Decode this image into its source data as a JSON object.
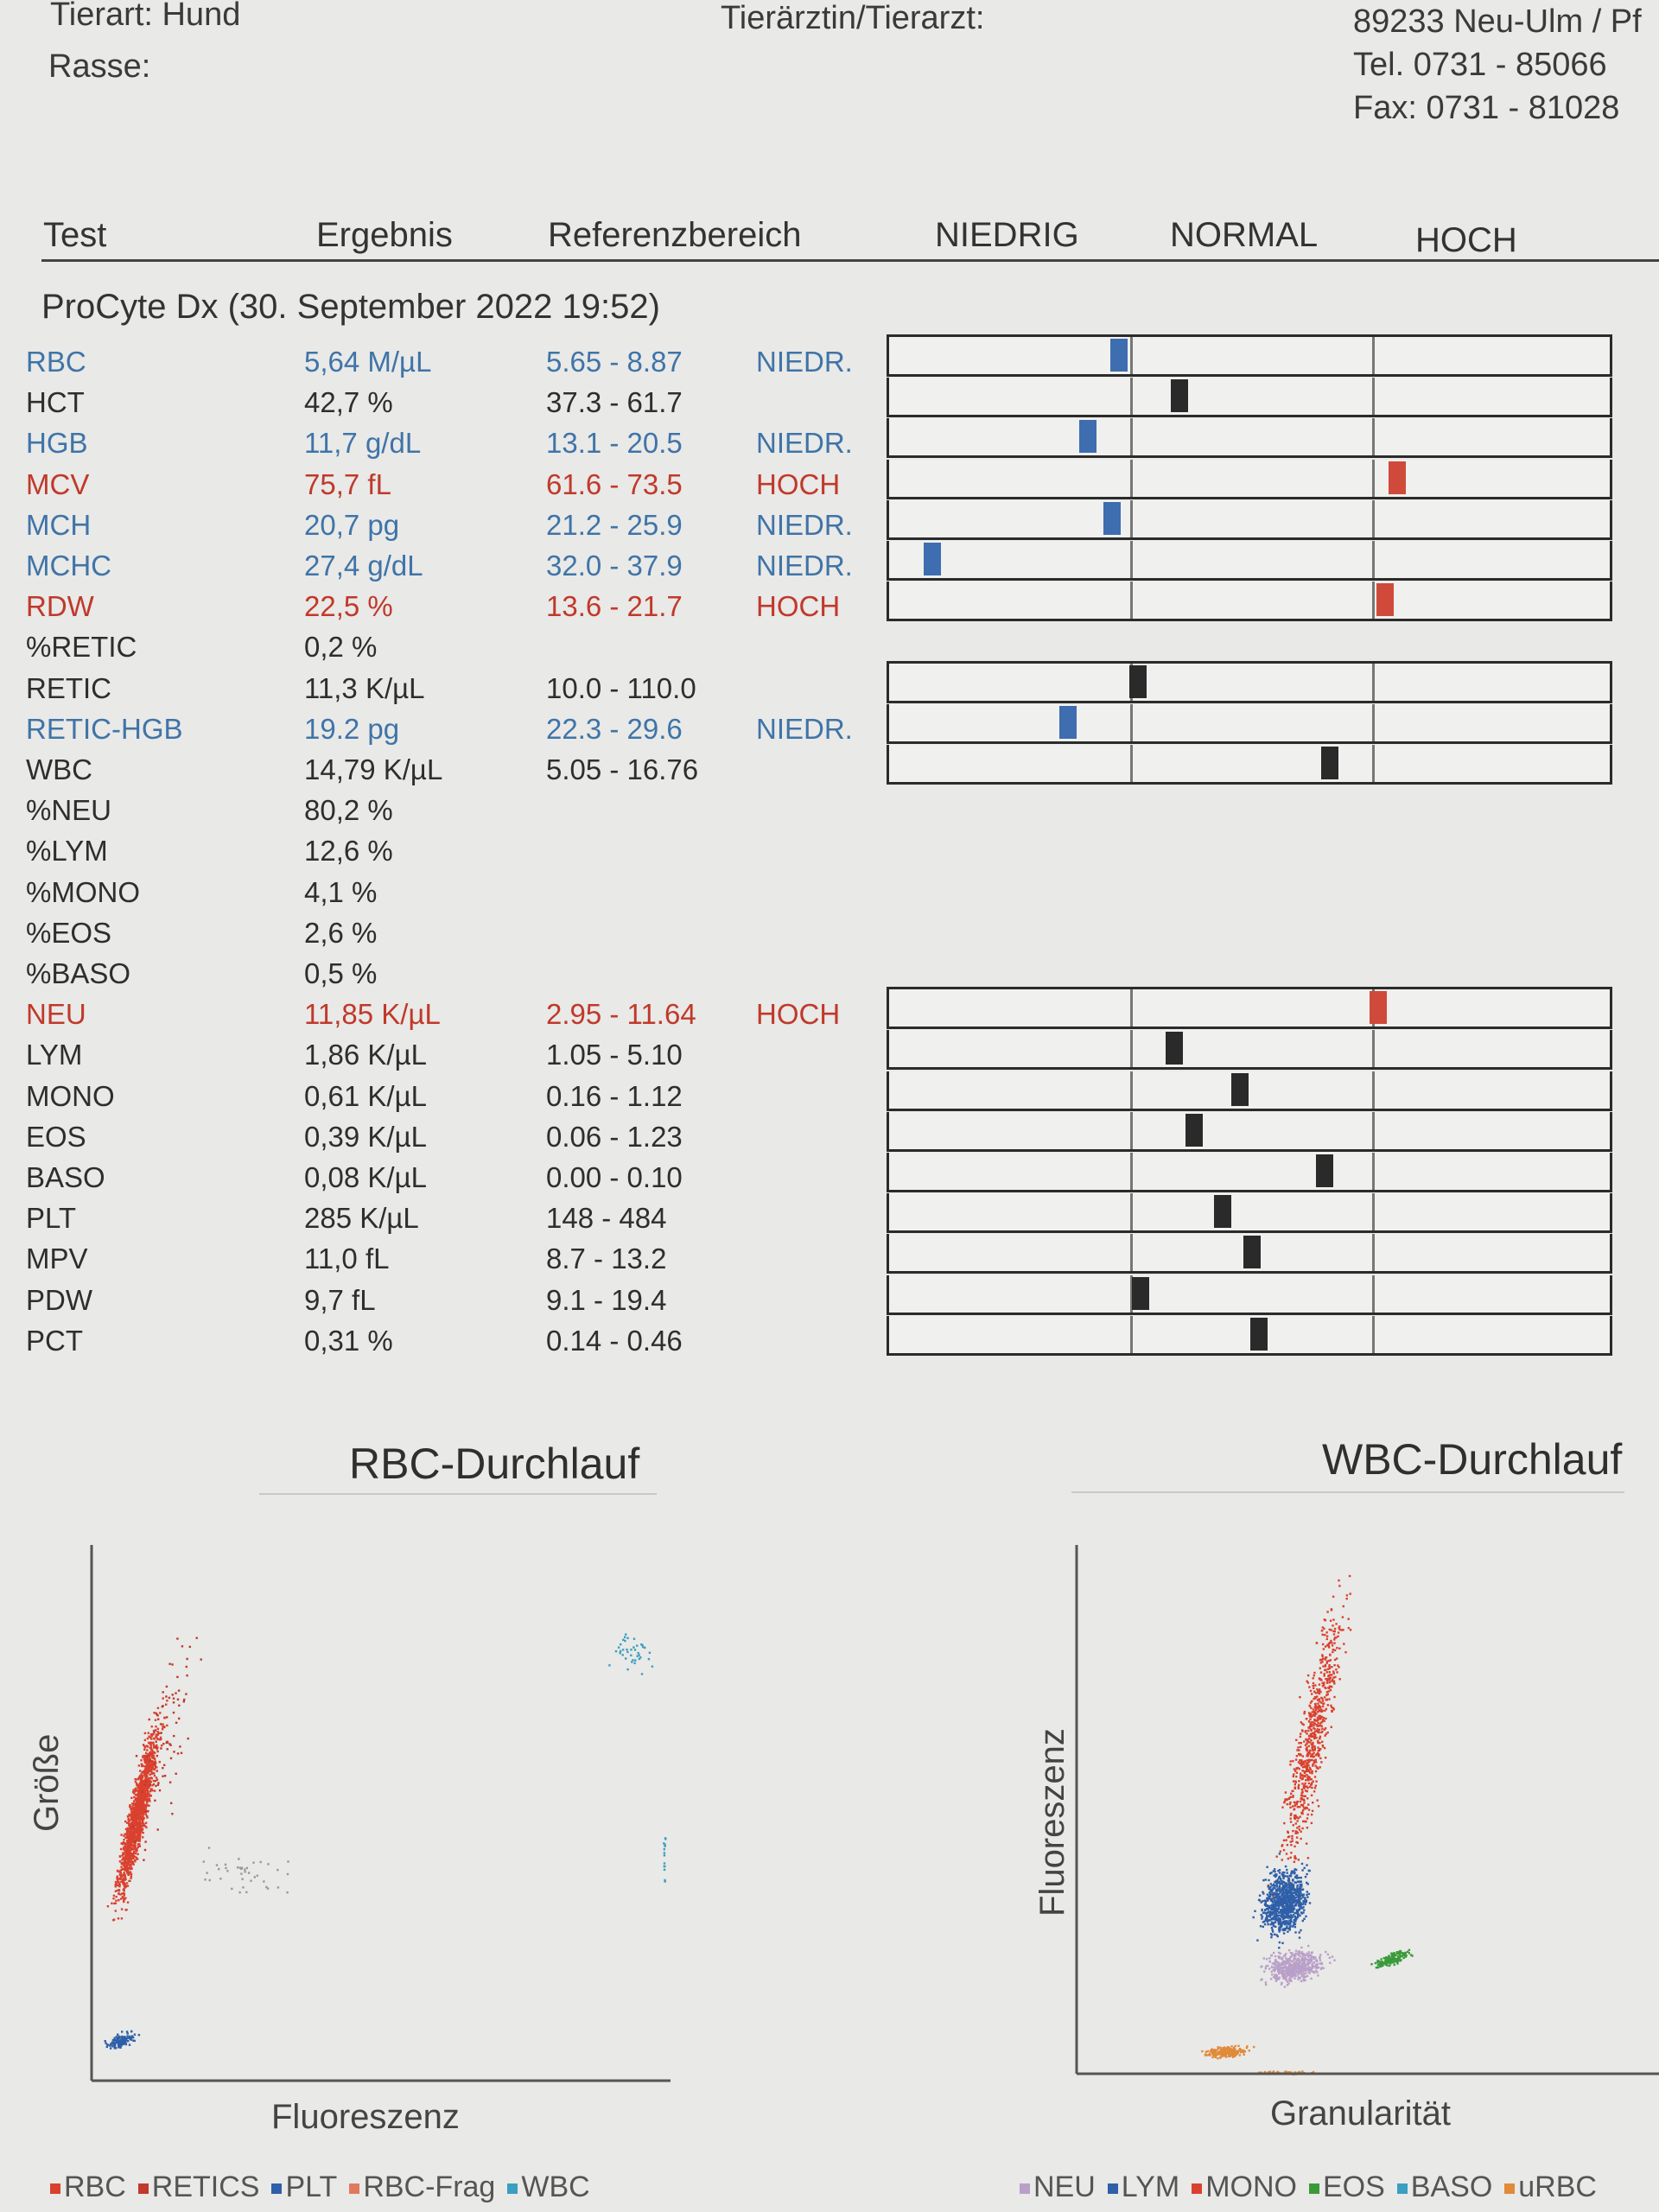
{
  "header": {
    "species": "Tierart: Hund",
    "breed": "Rasse:",
    "vet": "Tierärztin/Tierarzt:",
    "address_city": "89233 Neu-Ulm / Pf",
    "tel": "Tel. 0731 - 85066",
    "fax": "Fax: 0731 - 81028"
  },
  "columns": {
    "test": "Test",
    "result": "Ergebnis",
    "reference": "Referenzbereich",
    "low": "NIEDRIG",
    "normal": "NORMAL",
    "high": "HOCH"
  },
  "section_title": "ProCyte Dx (30. September 2022 19:52)",
  "colors": {
    "low": "#3e6db0",
    "high": "#cf4a3a",
    "normal": "#2a2a2a"
  },
  "results": [
    {
      "test": "RBC",
      "result": "5,64 M/µL",
      "ref": "5.65 - 8.87",
      "flag": "NIEDR.",
      "status": "low",
      "gauge": 0.95
    },
    {
      "test": "HCT",
      "result": "42,7 %",
      "ref": "37.3 - 61.7",
      "flag": "",
      "status": "normal",
      "gauge": 1.2
    },
    {
      "test": "HGB",
      "result": "11,7 g/dL",
      "ref": "13.1 - 20.5",
      "flag": "NIEDR.",
      "status": "low",
      "gauge": 0.82
    },
    {
      "test": "MCV",
      "result": "75,7 fL",
      "ref": "61.6 - 73.5",
      "flag": "HOCH",
      "status": "high",
      "gauge": 2.1
    },
    {
      "test": "MCH",
      "result": "20,7 pg",
      "ref": "21.2 - 25.9",
      "flag": "NIEDR.",
      "status": "low",
      "gauge": 0.92
    },
    {
      "test": "MCHC",
      "result": "27,4 g/dL",
      "ref": "32.0 - 37.9",
      "flag": "NIEDR.",
      "status": "low",
      "gauge": 0.18
    },
    {
      "test": "RDW",
      "result": "22,5 %",
      "ref": "13.6 - 21.7",
      "flag": "HOCH",
      "status": "high",
      "gauge": 2.05
    },
    {
      "test": "%RETIC",
      "result": "0,2 %",
      "ref": "",
      "flag": "",
      "status": "none"
    },
    {
      "test": "RETIC",
      "result": "11,3 K/µL",
      "ref": "10.0 - 110.0",
      "flag": "",
      "status": "normal",
      "gauge": 1.03
    },
    {
      "test": "RETIC-HGB",
      "result": "19.2 pg",
      "ref": "22.3 - 29.6",
      "flag": "NIEDR.",
      "status": "low",
      "gauge": 0.74
    },
    {
      "test": "WBC",
      "result": "14,79 K/µL",
      "ref": "5.05 - 16.76",
      "flag": "",
      "status": "normal",
      "gauge": 1.82
    },
    {
      "test": "%NEU",
      "result": "80,2 %",
      "ref": "",
      "flag": "",
      "status": "none"
    },
    {
      "test": "%LYM",
      "result": "12,6 %",
      "ref": "",
      "flag": "",
      "status": "none"
    },
    {
      "test": "%MONO",
      "result": "4,1 %",
      "ref": "",
      "flag": "",
      "status": "none"
    },
    {
      "test": "%EOS",
      "result": "2,6 %",
      "ref": "",
      "flag": "",
      "status": "none"
    },
    {
      "test": "%BASO",
      "result": "0,5 %",
      "ref": "",
      "flag": "",
      "status": "none"
    },
    {
      "test": "NEU",
      "result": "11,85 K/µL",
      "ref": "2.95 - 11.64",
      "flag": "HOCH",
      "status": "high",
      "gauge": 2.02
    },
    {
      "test": "LYM",
      "result": "1,86 K/µL",
      "ref": "1.05 - 5.10",
      "flag": "",
      "status": "normal",
      "gauge": 1.18
    },
    {
      "test": "MONO",
      "result": "0,61 K/µL",
      "ref": "0.16 - 1.12",
      "flag": "",
      "status": "normal",
      "gauge": 1.45
    },
    {
      "test": "EOS",
      "result": "0,39 K/µL",
      "ref": "0.06 - 1.23",
      "flag": "",
      "status": "normal",
      "gauge": 1.26
    },
    {
      "test": "BASO",
      "result": "0,08 K/µL",
      "ref": "0.00 - 0.10",
      "flag": "",
      "status": "normal",
      "gauge": 1.8
    },
    {
      "test": "PLT",
      "result": "285 K/µL",
      "ref": "148 - 484",
      "flag": "",
      "status": "normal",
      "gauge": 1.38
    },
    {
      "test": "MPV",
      "result": "11,0 fL",
      "ref": "8.7 - 13.2",
      "flag": "",
      "status": "normal",
      "gauge": 1.5
    },
    {
      "test": "PDW",
      "result": "9,7 fL",
      "ref": "9.1 - 19.4",
      "flag": "",
      "status": "normal",
      "gauge": 1.04
    },
    {
      "test": "PCT",
      "result": "0,31 %",
      "ref": "0.14 - 0.46",
      "flag": "",
      "status": "normal",
      "gauge": 1.53
    }
  ],
  "rbc_plot": {
    "title": "RBC-Durchlauf",
    "xlabel": "Fluoreszenz",
    "ylabel": "Größe",
    "legend": [
      {
        "label": "RBC",
        "color": "#d9412f"
      },
      {
        "label": "RETICS",
        "color": "#c0392b"
      },
      {
        "label": "PLT",
        "color": "#2f5fa8"
      },
      {
        "label": "RBC-Frag",
        "color": "#e07a5f"
      },
      {
        "label": "WBC",
        "color": "#3a9fc0"
      }
    ]
  },
  "wbc_plot": {
    "title": "WBC-Durchlauf",
    "xlabel": "Granularität",
    "ylabel": "Fluoreszenz",
    "legend": [
      {
        "label": "NEU",
        "color": "#b9a0c8"
      },
      {
        "label": "LYM",
        "color": "#2f5fa8"
      },
      {
        "label": "MONO",
        "color": "#d9412f"
      },
      {
        "label": "EOS",
        "color": "#3a9a3a"
      },
      {
        "label": "BASO",
        "color": "#3a9fc0"
      },
      {
        "label": "uRBC",
        "color": "#e08a3a"
      }
    ]
  }
}
